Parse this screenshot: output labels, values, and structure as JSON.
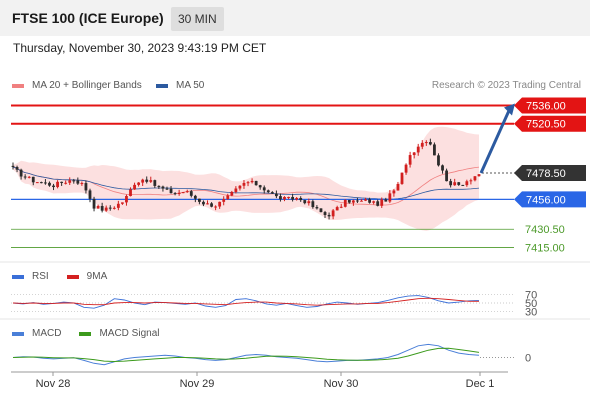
{
  "header": {
    "title": "FTSE 100 (ICE Europe)",
    "timeframe": "30 MIN",
    "datetime": "Thursday, November 30, 2023 9:43:19 PM CET",
    "credit": "Research © 2023 Trading Central"
  },
  "colors": {
    "bullish_candle": "#d21f1f",
    "bearish_candle": "#2b2b2b",
    "resistance": "#e31414",
    "current_price": "#333333",
    "pivot": "#2a66e6",
    "support": "#4c9a2a",
    "bollinger_fill": "#fbd5d5",
    "ma20": "#f08080",
    "ma50": "#2c5aa0",
    "arrow": "#2c5aa0",
    "rsi": "#3a6fd8",
    "rsi_ma": "#d42020",
    "macd": "#4a7fd8",
    "macd_signal": "#3c9a1c"
  },
  "chart_data": [
    {
      "type": "candlestick",
      "title": "FTSE 100 (ICE Europe)",
      "x_labels": [
        "Nov 28",
        "Nov 29",
        "Nov 30",
        "Dec 1"
      ],
      "legend": [
        {
          "name": "MA 20 + Bollinger Bands",
          "color": "#f08080"
        },
        {
          "name": "MA 50",
          "color": "#2c5aa0"
        }
      ],
      "levels": [
        {
          "label": "7536.00",
          "value": 7536.0,
          "kind": "resistance"
        },
        {
          "label": "7520.50",
          "value": 7520.5,
          "kind": "resistance"
        },
        {
          "label": "7478.50",
          "value": 7478.5,
          "kind": "current"
        },
        {
          "label": "7456.00",
          "value": 7456.0,
          "kind": "pivot"
        },
        {
          "label": "7430.50",
          "value": 7430.5,
          "kind": "support"
        },
        {
          "label": "7415.00",
          "value": 7415.0,
          "kind": "support"
        }
      ],
      "y_range": [
        7400,
        7545
      ],
      "forecast": {
        "from": 7478.5,
        "to": 7536.0
      },
      "close_anchors": [
        7482,
        7476,
        7472,
        7470,
        7468,
        7471,
        7473,
        7468,
        7450,
        7447,
        7450,
        7455,
        7470,
        7474,
        7468,
        7464,
        7461,
        7463,
        7457,
        7452,
        7451,
        7456,
        7464,
        7471,
        7469,
        7464,
        7458,
        7456,
        7457,
        7454,
        7447,
        7442,
        7448,
        7455,
        7454,
        7455,
        7452,
        7457,
        7468,
        7492,
        7502,
        7508,
        7486,
        7470,
        7468,
        7473,
        7478
      ]
    },
    {
      "type": "line",
      "name": "RSI",
      "legend": [
        {
          "name": "RSI",
          "color": "#3a6fd8"
        },
        {
          "name": "9MA",
          "color": "#d42020"
        }
      ],
      "y_ticks": [
        70,
        50,
        30
      ],
      "y_range": [
        20,
        80
      ],
      "series": [
        {
          "name": "RSI",
          "values": [
            50,
            48,
            51,
            47,
            49,
            52,
            50,
            40,
            38,
            45,
            60,
            57,
            50,
            46,
            52,
            51,
            49,
            47,
            50,
            43,
            40,
            44,
            58,
            60,
            55,
            48,
            45,
            49,
            44,
            40,
            42,
            48,
            52,
            50,
            47,
            49,
            51,
            56,
            62,
            66,
            67,
            63,
            55,
            50,
            52,
            55,
            56
          ]
        },
        {
          "name": "9MA",
          "values": [
            50,
            49,
            50,
            49,
            49,
            50,
            50,
            47,
            46,
            46,
            50,
            51,
            51,
            50,
            51,
            51,
            50,
            49,
            49,
            48,
            47,
            46,
            49,
            51,
            52,
            52,
            50,
            49,
            48,
            46,
            45,
            46,
            47,
            48,
            48,
            49,
            49,
            51,
            54,
            57,
            60,
            61,
            60,
            58,
            56,
            54,
            54
          ]
        }
      ]
    },
    {
      "type": "line",
      "name": "MACD",
      "legend": [
        {
          "name": "MACD",
          "color": "#4a7fd8"
        },
        {
          "name": "MACD Signal",
          "color": "#3c9a1c"
        }
      ],
      "y_ticks": [
        0
      ],
      "y_range": [
        -10,
        12
      ],
      "series": [
        {
          "name": "MACD",
          "values": [
            0,
            0.5,
            0.3,
            -0.5,
            -1,
            -0.5,
            -0.2,
            -2,
            -4,
            -5,
            -3,
            -1,
            0,
            0.5,
            1,
            1.5,
            1,
            0,
            -0.5,
            -1.5,
            -2,
            -1.5,
            0,
            1.5,
            2,
            1.5,
            0.5,
            0,
            -0.5,
            -1.5,
            -2.5,
            -3,
            -2.5,
            -2,
            -2,
            -1.5,
            -1,
            0,
            2,
            5,
            8,
            9,
            8,
            5,
            3,
            2,
            1.5
          ]
        },
        {
          "name": "MACD Signal",
          "values": [
            0,
            0.2,
            0.3,
            0.1,
            -0.2,
            -0.3,
            -0.3,
            -0.8,
            -1.5,
            -2.5,
            -2.8,
            -2.5,
            -2,
            -1.5,
            -1,
            -0.5,
            0,
            0,
            -0.2,
            -0.6,
            -1,
            -1.2,
            -1,
            -0.5,
            0.2,
            0.8,
            0.9,
            0.8,
            0.5,
            0,
            -0.6,
            -1.2,
            -1.6,
            -1.8,
            -1.9,
            -1.9,
            -1.7,
            -1.3,
            -0.5,
            1,
            3,
            5,
            6.2,
            6.3,
            5.5,
            4.5,
            3.5
          ]
        }
      ]
    }
  ]
}
